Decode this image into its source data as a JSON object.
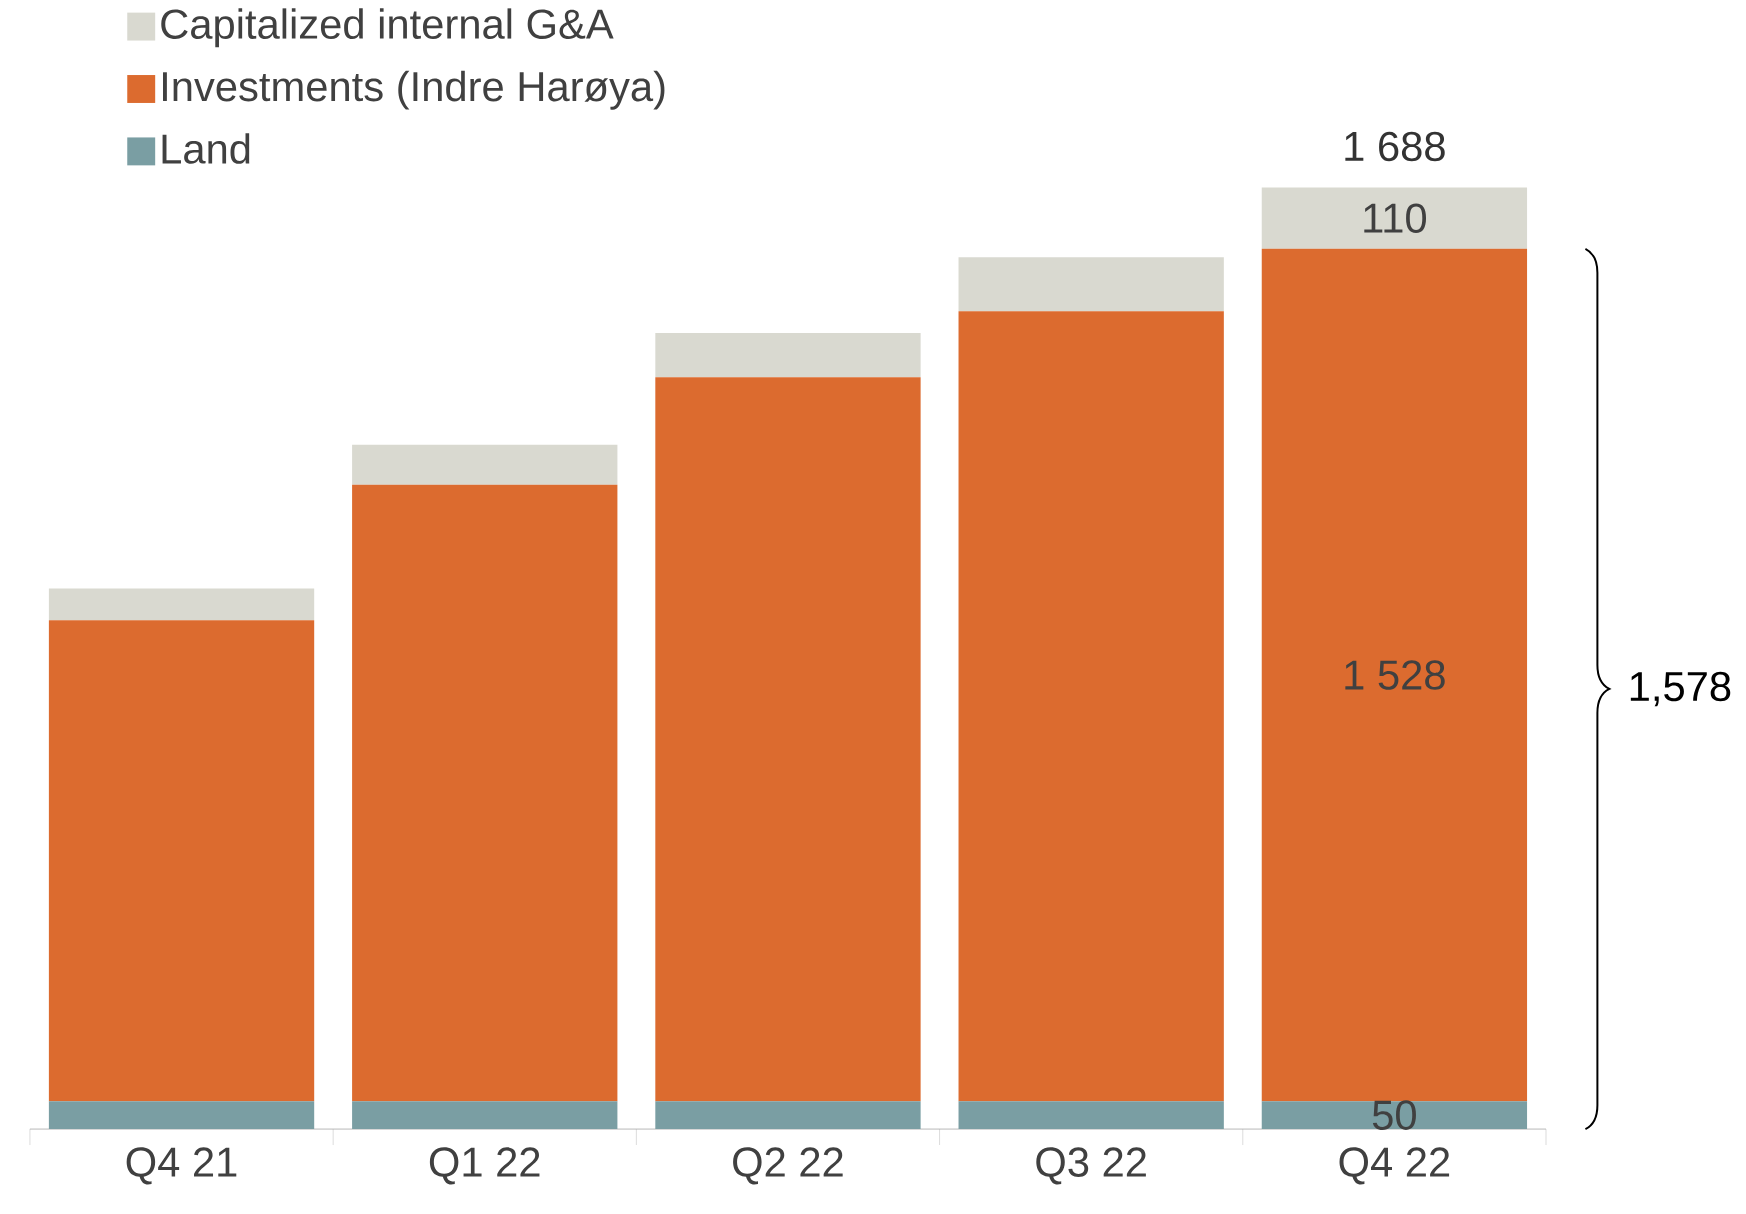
{
  "chart_data": {
    "type": "bar",
    "stacked": true,
    "categories": [
      "Q4 21",
      "Q1 22",
      "Q2 22",
      "Q3 22",
      "Q4 22"
    ],
    "series": [
      {
        "name": "Land",
        "color": "#7a9ea3",
        "values": [
          50,
          50,
          50,
          50,
          50
        ],
        "value_labels": [
          null,
          null,
          null,
          null,
          "50"
        ]
      },
      {
        "name": "Investments (Indre Harøya)",
        "color": "#dc6b2f",
        "values": [
          862,
          1105,
          1298,
          1416,
          1528
        ],
        "value_labels": [
          null,
          null,
          null,
          null,
          "1 528"
        ]
      },
      {
        "name": "Capitalized internal G&A",
        "color": "#d9d9d0",
        "values": [
          57,
          72,
          79,
          97,
          110
        ],
        "value_labels": [
          null,
          null,
          null,
          null,
          "110"
        ]
      }
    ],
    "totals": [
      null,
      null,
      null,
      null,
      "1 688"
    ],
    "annotations": [
      "1,578"
    ],
    "legend": "top left"
  }
}
